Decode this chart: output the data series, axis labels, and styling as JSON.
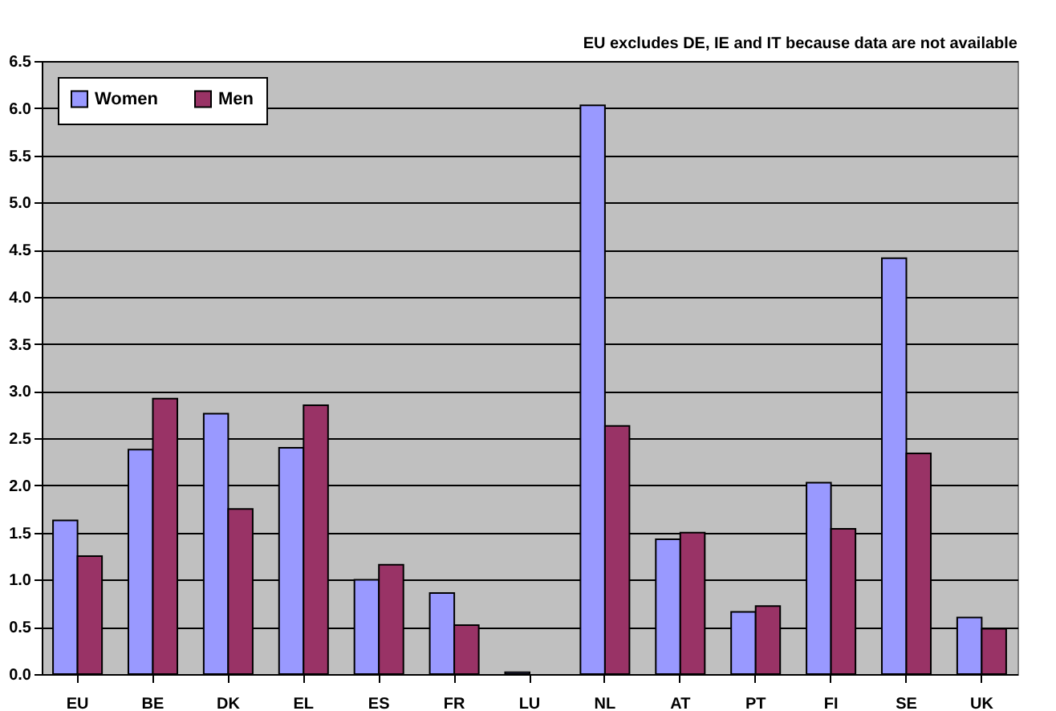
{
  "chart_data": {
    "type": "bar",
    "annotations": [
      "EU excludes DE, IE and IT because data are not available"
    ],
    "categories": [
      "EU",
      "BE",
      "DK",
      "EL",
      "ES",
      "FR",
      "LU",
      "NL",
      "AT",
      "PT",
      "FI",
      "SE",
      "UK"
    ],
    "series": [
      {
        "name": "Women",
        "color": "#9999ff",
        "values": [
          1.63,
          2.38,
          2.76,
          2.4,
          1.0,
          0.86,
          0.02,
          6.03,
          1.43,
          0.66,
          2.03,
          4.41,
          0.6
        ]
      },
      {
        "name": "Men",
        "color": "#993366",
        "values": [
          1.25,
          2.92,
          1.75,
          2.85,
          1.16,
          0.52,
          null,
          2.63,
          1.5,
          0.72,
          1.54,
          2.34,
          0.48
        ]
      }
    ],
    "ylim": [
      0,
      6.5
    ],
    "yticks": [
      {
        "value": 0,
        "label": "0.0"
      },
      0.5,
      {
        "value": 1,
        "label": "1.0"
      },
      1.5,
      {
        "value": 2,
        "label": "2.0"
      },
      2.5,
      {
        "value": 3,
        "label": "3.0"
      },
      3.5,
      {
        "value": 4,
        "label": "4.0"
      },
      4.5,
      {
        "value": 5,
        "label": "5.0"
      },
      5.5,
      {
        "value": 6,
        "label": "6.0"
      },
      6.5
    ],
    "grid": "y",
    "legend": "top left"
  }
}
